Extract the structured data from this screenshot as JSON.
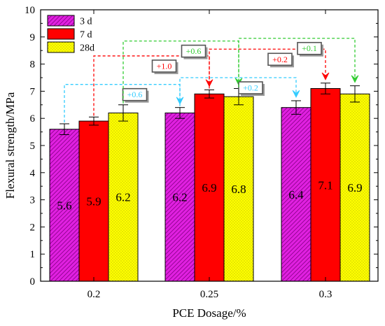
{
  "chart_data": {
    "type": "bar",
    "title": "",
    "xlabel": "PCE Dosage/%",
    "ylabel": "Flexural strength/MPa",
    "ylim": [
      0,
      10
    ],
    "yticks": [
      0,
      1,
      2,
      3,
      4,
      5,
      6,
      7,
      8,
      9,
      10
    ],
    "categories": [
      "0.2",
      "0.25",
      "0.3"
    ],
    "legend_position": "top-left",
    "grid": false,
    "series": [
      {
        "name": "3 d",
        "values": [
          5.6,
          6.2,
          6.4
        ],
        "errors": [
          0.2,
          0.2,
          0.25
        ],
        "labels": [
          "5.6",
          "6.2",
          "6.4"
        ],
        "color": "#e020e0",
        "pattern": "diagonal-hatch"
      },
      {
        "name": "7 d",
        "values": [
          5.9,
          6.9,
          7.1
        ],
        "errors": [
          0.15,
          0.15,
          0.2
        ],
        "labels": [
          "5.9",
          "6.9",
          "7.1"
        ],
        "color": "#ff0000",
        "pattern": "solid"
      },
      {
        "name": "28d",
        "values": [
          6.2,
          6.8,
          6.9
        ],
        "errors": [
          0.3,
          0.3,
          0.3
        ],
        "labels": [
          "6.2",
          "6.8",
          "6.9"
        ],
        "color": "#ffff00",
        "pattern": "dots"
      }
    ],
    "annotations": [
      {
        "label": "+0.6",
        "from": [
          0,
          0
        ],
        "to": [
          1,
          0
        ],
        "color": "#33ccff"
      },
      {
        "label": "+1.0",
        "from": [
          0,
          1
        ],
        "to": [
          1,
          1
        ],
        "color": "#ff0000"
      },
      {
        "label": "+0.6",
        "from": [
          0,
          2
        ],
        "to": [
          1,
          2
        ],
        "color": "#33cc33"
      },
      {
        "label": "+0.2",
        "from": [
          1,
          0
        ],
        "to": [
          2,
          0
        ],
        "color": "#33ccff"
      },
      {
        "label": "+0.2",
        "from": [
          1,
          1
        ],
        "to": [
          2,
          1
        ],
        "color": "#ff0000"
      },
      {
        "label": "+0.1",
        "from": [
          1,
          2
        ],
        "to": [
          2,
          2
        ],
        "color": "#33cc33"
      }
    ]
  }
}
